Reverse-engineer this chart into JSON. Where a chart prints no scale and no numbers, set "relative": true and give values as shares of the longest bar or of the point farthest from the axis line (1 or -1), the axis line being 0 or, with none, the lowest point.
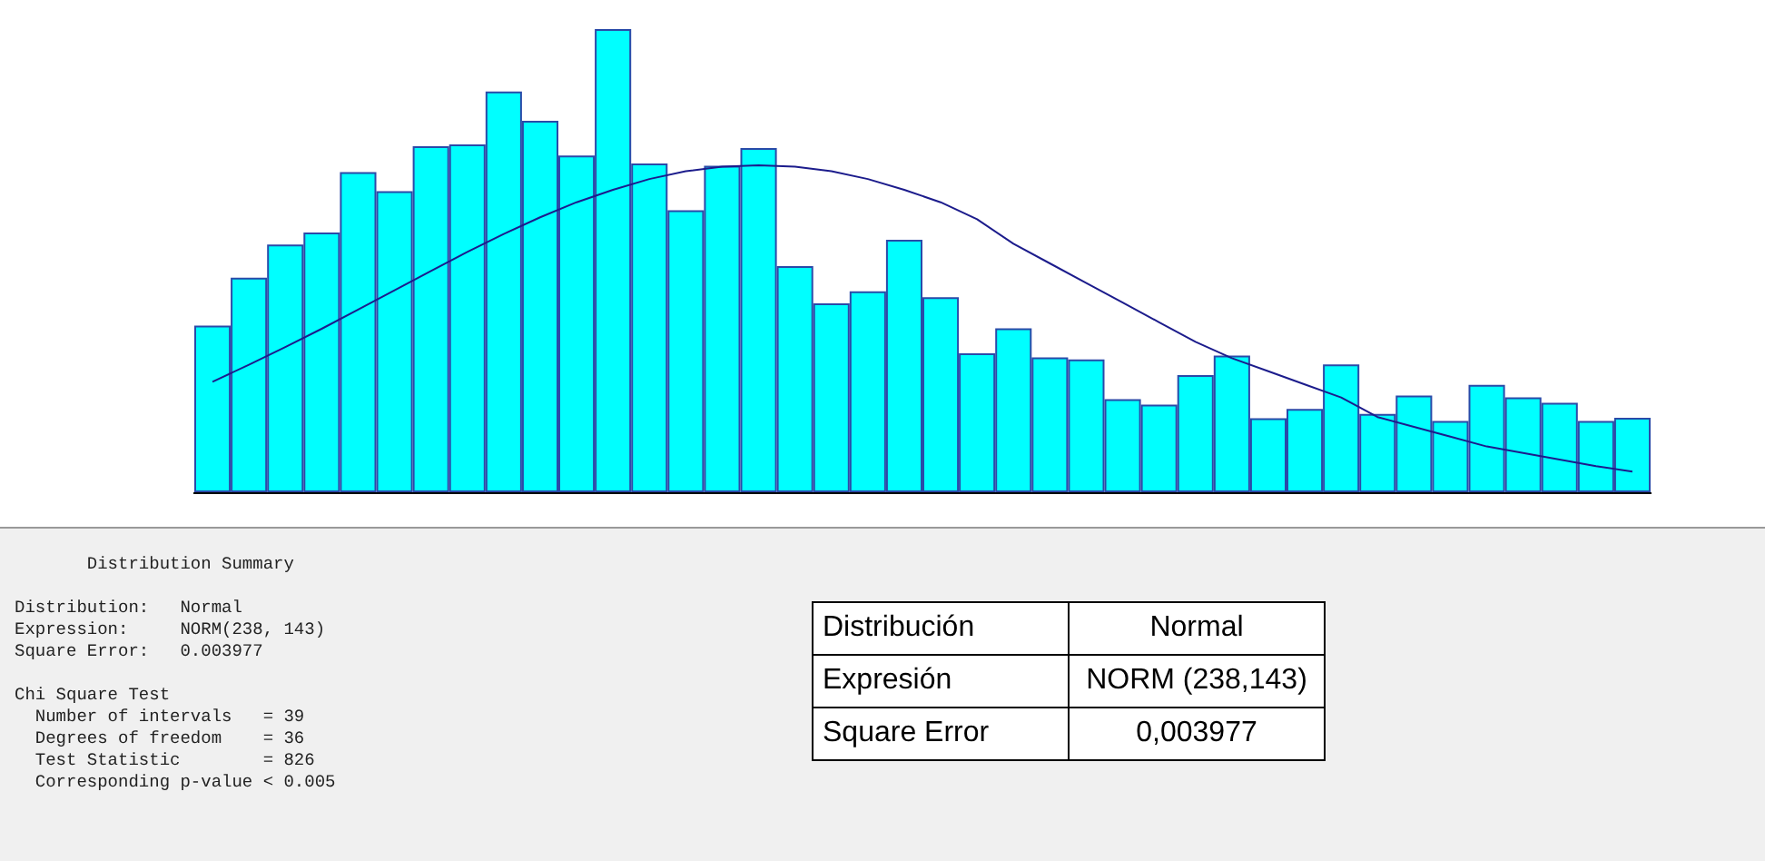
{
  "chart_data": [
    {
      "type": "bar",
      "relative": true,
      "grid": false,
      "color": "#00ffff",
      "categories": [
        null,
        null,
        null,
        null,
        null,
        null,
        null,
        null,
        null,
        null,
        null,
        null,
        null,
        null,
        null,
        null,
        null,
        null,
        null,
        null,
        null,
        null,
        null,
        null,
        null,
        null,
        null,
        null,
        null,
        null,
        null,
        null,
        null,
        null,
        null,
        null,
        null,
        null,
        null,
        null
      ],
      "values": [
        0.36,
        0.463,
        0.535,
        0.561,
        0.691,
        0.65,
        0.747,
        0.751,
        0.865,
        0.802,
        0.727,
        1,
        0.71,
        0.609,
        0.705,
        0.743,
        0.488,
        0.408,
        0.434,
        0.545,
        0.421,
        0.3,
        0.354,
        0.291,
        0.287,
        0.201,
        0.189,
        0.253,
        0.295,
        0.16,
        0.18,
        0.276,
        0.169,
        0.209,
        0.154,
        0.232,
        0.205,
        0.193,
        0.154,
        0.161
      ],
      "annotations": [
        "Distribution Summary",
        "Distribution:   Normal",
        "Expression:     NORM(238, 143)",
        "Square Error:   0.003977",
        "Chi Square Test",
        "  Number of intervals   = 39",
        "  Degrees of freedom    = 36",
        "  Test Statistic        = 826",
        "  Corresponding p-value < 0.005",
        "Distribución",
        "Normal",
        "Expresión",
        "NORM (238,143)",
        "Square Error",
        "0,003977"
      ]
    },
    {
      "type": "line",
      "relative": true,
      "grid": false,
      "color": "#1c1c8c",
      "line_style": "solid",
      "categories": [
        null,
        null,
        null,
        null,
        null,
        null,
        null,
        null,
        null,
        null,
        null,
        null,
        null,
        null,
        null,
        null,
        null,
        null,
        null,
        null,
        null,
        null,
        null,
        null,
        null,
        null,
        null,
        null,
        null,
        null,
        null,
        null,
        null,
        null,
        null,
        null,
        null,
        null,
        null,
        null
      ],
      "values": [
        0.338,
        0.39,
        0.444,
        0.5,
        0.559,
        0.618,
        0.677,
        0.735,
        0.79,
        0.841,
        0.887,
        0.925,
        0.958,
        0.982,
        0.996,
        1,
        0.996,
        0.982,
        0.958,
        0.925,
        0.887,
        0.835,
        0.76,
        0.7,
        0.64,
        0.58,
        0.52,
        0.46,
        0.41,
        0.37,
        0.33,
        0.29,
        0.23,
        0.2,
        0.17,
        0.14,
        0.12,
        0.1,
        0.08,
        0.063
      ]
    }
  ]
}
